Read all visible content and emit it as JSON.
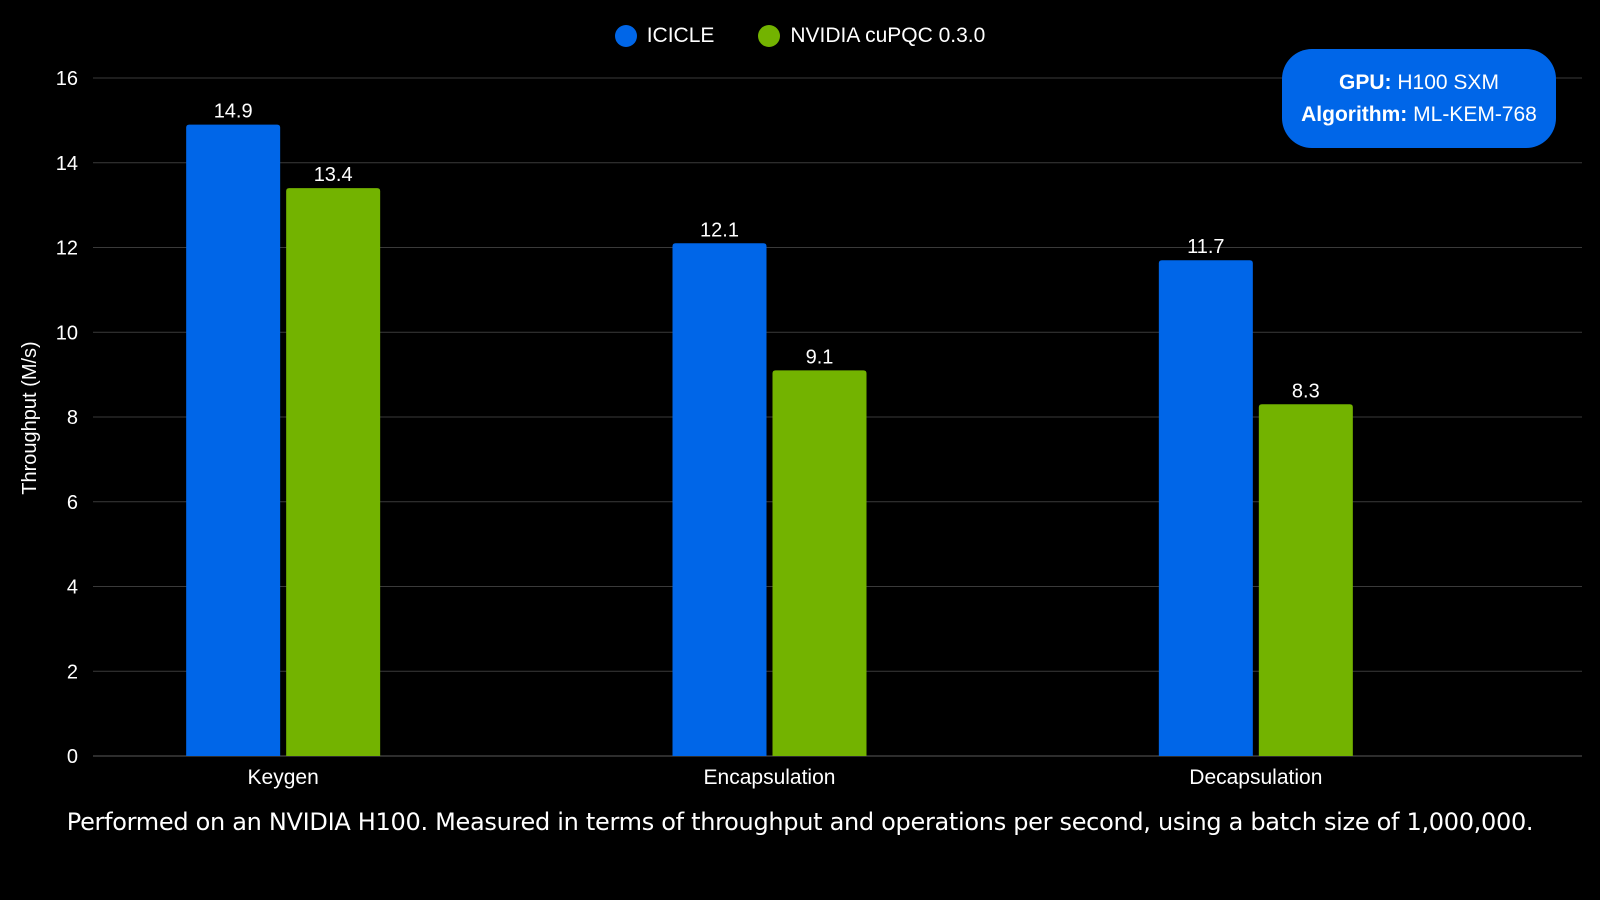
{
  "chart_data": {
    "type": "bar",
    "title": "",
    "xlabel": "",
    "ylabel": "Throughput (M/s)",
    "ylim": [
      0,
      16
    ],
    "yticks": [
      0,
      2,
      4,
      6,
      8,
      10,
      12,
      14,
      16
    ],
    "grid": true,
    "legend_position": "top-center",
    "categories": [
      "Keygen",
      "Encapsulation",
      "Decapsulation"
    ],
    "series": [
      {
        "name": "ICICLE",
        "values": [
          14.9,
          12.1,
          11.7
        ],
        "value_labels": [
          "14.9",
          "12.1",
          "11.7"
        ],
        "color": "#0066E8"
      },
      {
        "name": "NVIDIA cuPQC 0.3.0",
        "values": [
          13.4,
          9.1,
          8.3
        ],
        "value_labels": [
          "13.4",
          "9.1",
          "8.3"
        ],
        "color": "#73B300"
      }
    ]
  },
  "info_box": {
    "gpu_label": "GPU:",
    "gpu_value": "H100 SXM",
    "algorithm_label": "Algorithm:",
    "algorithm_value": "ML-KEM-768",
    "color": "#0066E8"
  },
  "footnote": "Performed on an NVIDIA H100. Measured in terms of throughput and operations per second, using a batch size of 1,000,000.",
  "colors": {
    "background": "#000000",
    "grid": "#3a3a3a",
    "text": "#ffffff"
  }
}
